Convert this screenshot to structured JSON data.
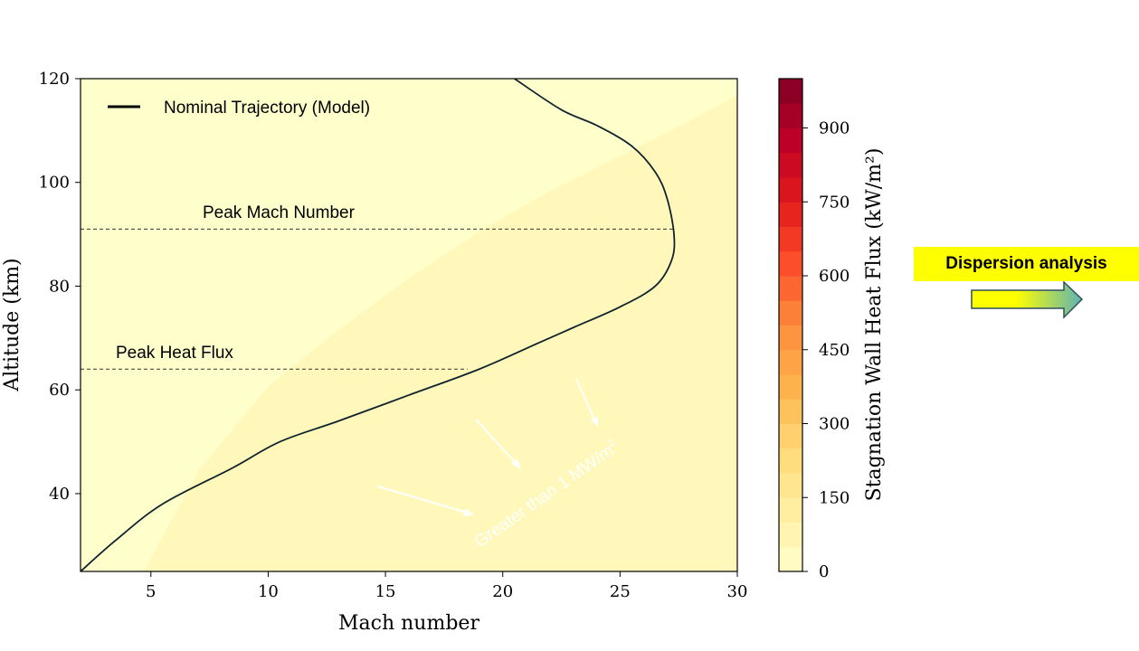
{
  "chart_data": {
    "type": "heatmap",
    "xlabel": "Mach number",
    "ylabel": "Altitude (km)",
    "xlim": [
      2,
      30
    ],
    "ylim": [
      25,
      120
    ],
    "xticks": [
      5,
      10,
      15,
      20,
      25,
      30
    ],
    "yticks": [
      40,
      60,
      80,
      100,
      120
    ],
    "colorbar": {
      "label": "Stagnation Wall Heat Flux (kW/m²)",
      "range": [
        0,
        1000
      ],
      "ticks": [
        0,
        150,
        300,
        450,
        600,
        750,
        900
      ],
      "levels": 20,
      "colormap": [
        "#ffffcc",
        "#ffeda0",
        "#fed976",
        "#feb24c",
        "#fd8d3c",
        "#fc4e2a",
        "#e31a1c",
        "#bd0026",
        "#800026"
      ]
    },
    "contour_boundaries_altitude_km": {
      "mach": [
        2,
        4.5,
        7,
        10,
        13,
        16,
        19,
        22,
        25,
        28,
        30
      ],
      "heat_flux_1000": [
        15,
        15,
        20,
        28,
        38,
        48,
        56,
        61,
        65,
        69,
        72
      ],
      "heat_flux_0": [
        15,
        24,
        46,
        63,
        74,
        84,
        93,
        101,
        108,
        115,
        120
      ]
    },
    "series": [
      {
        "name": "Nominal Trajectory (Model)",
        "x": [
          2,
          3.5,
          5.5,
          8.5,
          10.5,
          13,
          16,
          19,
          21.5,
          23,
          25,
          26.5,
          27.2,
          27.3,
          27,
          26.5,
          25.5,
          24,
          22.5,
          20.5
        ],
        "y": [
          25,
          31,
          38,
          45,
          50,
          54,
          59,
          64,
          69,
          72,
          76,
          80,
          85,
          90,
          97,
          102,
          107,
          111,
          114,
          120
        ]
      }
    ],
    "reference_lines": [
      {
        "label": "Peak Mach Number",
        "altitude": 91
      },
      {
        "label": "Peak Heat Flux",
        "altitude": 64
      }
    ],
    "region_annotation": {
      "text": "Greater than 1 MW/m",
      "superscript": "2"
    }
  },
  "side_panel": {
    "label": "Dispersion analysis",
    "arrow_colors": [
      "#ffff00",
      "#5fb3b3"
    ]
  }
}
